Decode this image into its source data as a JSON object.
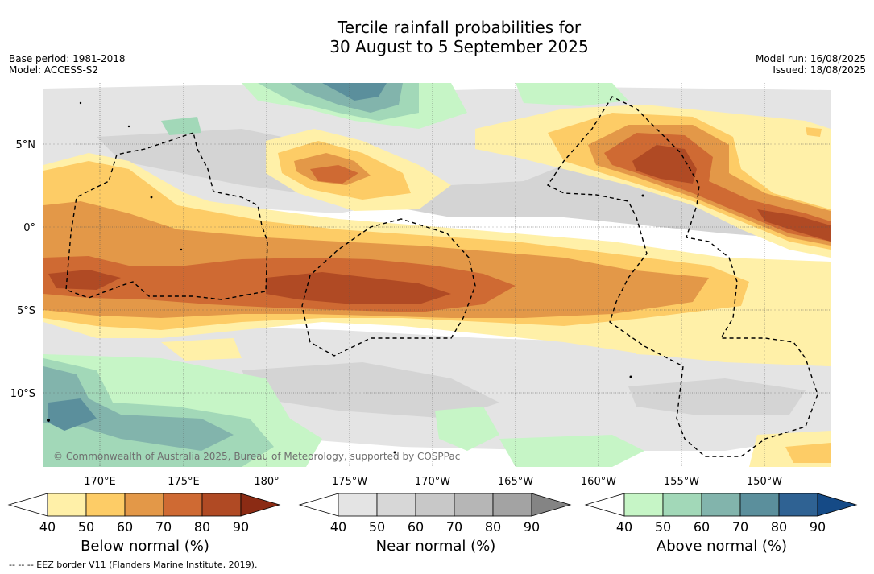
{
  "title_line1": "Tercile rainfall probabilities for",
  "title_line2": "30 August to 5 September 2025",
  "base_period": "Base period: 1981-2018",
  "model": "Model: ACCESS-S2",
  "model_run": "Model run: 16/08/2025",
  "issued": "Issued: 18/08/2025",
  "lat_labels": [
    "5°N",
    "0°",
    "5°S",
    "10°S"
  ],
  "lon_labels": [
    "170°E",
    "175°E",
    "180°",
    "175°W",
    "170°W",
    "165°W",
    "160°W",
    "155°W",
    "150°W"
  ],
  "copyright": "© Commonwealth of Australia 2025, Bureau of Meteorology, supported by COSPPac",
  "colorbars": [
    {
      "title": "Below normal (%)",
      "ticks": [
        "40",
        "50",
        "60",
        "70",
        "80",
        "90"
      ],
      "colors": [
        "#fff0a8",
        "#fdcc66",
        "#e39848",
        "#cf6a33",
        "#b04a24",
        "#8b2b14"
      ]
    },
    {
      "title": "Near normal (%)",
      "ticks": [
        "40",
        "50",
        "60",
        "70",
        "80",
        "90"
      ],
      "colors": [
        "#e4e4e4",
        "#d7d7d7",
        "#c8c8c8",
        "#b6b6b6",
        "#a3a3a3",
        "#848484"
      ]
    },
    {
      "title": "Above normal (%)",
      "ticks": [
        "40",
        "50",
        "60",
        "70",
        "80",
        "90"
      ],
      "colors": [
        "#c6f5c6",
        "#a2d8b8",
        "#82b4ac",
        "#5b8f9c",
        "#2f6293",
        "#154a86"
      ]
    }
  ],
  "footnote": "--  --  -- EEZ border V11 (Flanders Marine Institute, 2019)."
}
